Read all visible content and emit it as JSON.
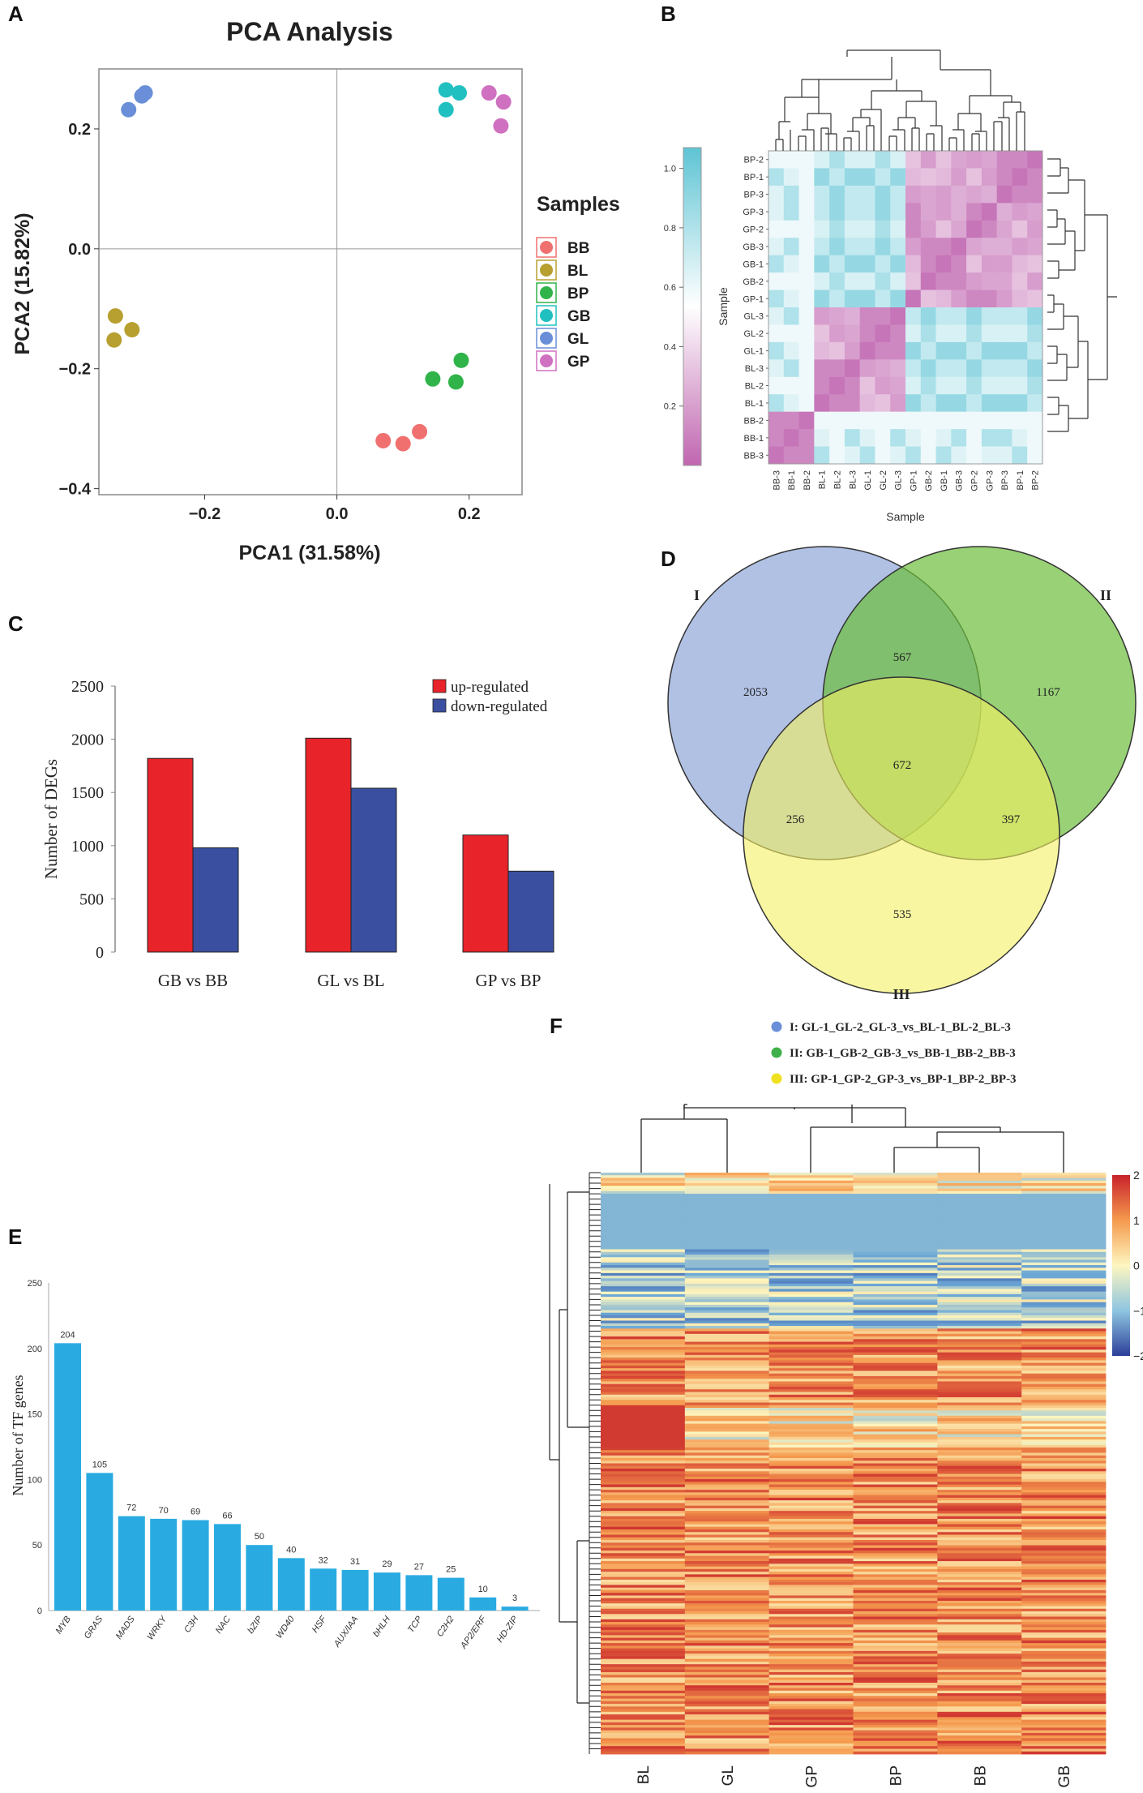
{
  "panels": {
    "a": "A",
    "b": "B",
    "c": "C",
    "d": "D",
    "e": "E",
    "f": "F"
  },
  "chart_data": [
    {
      "id": "pca",
      "type": "scatter",
      "title": "PCA Analysis",
      "xlabel": "PCA1 (31.58%)",
      "ylabel": "PCA2 (15.82%)",
      "xlim": [
        -0.36,
        0.28
      ],
      "ylim": [
        -0.41,
        0.3
      ],
      "xticks": [
        -0.2,
        0.0,
        0.2
      ],
      "xtick_labels": [
        "−0.2",
        "0.0",
        "0.2"
      ],
      "yticks": [
        0.2,
        0.0,
        -0.2,
        -0.4
      ],
      "ytick_labels": [
        "0.2",
        "0.0",
        "−0.2",
        "−0.4"
      ],
      "legend_title": "Samples",
      "legend_position": "right",
      "series": [
        {
          "name": "BB",
          "color": "#f07070",
          "points": [
            [
              0.07,
              -0.32
            ],
            [
              0.1,
              -0.325
            ],
            [
              0.125,
              -0.305
            ]
          ]
        },
        {
          "name": "BL",
          "color": "#b8a030",
          "points": [
            [
              -0.335,
              -0.112
            ],
            [
              -0.31,
              -0.135
            ],
            [
              -0.337,
              -0.152
            ]
          ]
        },
        {
          "name": "BP",
          "color": "#30b44a",
          "points": [
            [
              0.145,
              -0.217
            ],
            [
              0.18,
              -0.222
            ],
            [
              0.188,
              -0.186
            ]
          ]
        },
        {
          "name": "GB",
          "color": "#20c0c0",
          "points": [
            [
              0.165,
              0.265
            ],
            [
              0.185,
              0.26
            ],
            [
              0.165,
              0.232
            ]
          ]
        },
        {
          "name": "GL",
          "color": "#6a8fd8",
          "points": [
            [
              -0.29,
              0.26
            ],
            [
              -0.295,
              0.255
            ],
            [
              -0.315,
              0.232
            ]
          ]
        },
        {
          "name": "GP",
          "color": "#d070c0",
          "points": [
            [
              0.23,
              0.26
            ],
            [
              0.252,
              0.245
            ],
            [
              0.248,
              0.205
            ]
          ]
        }
      ]
    },
    {
      "id": "correlation-heatmap",
      "type": "heatmap",
      "xlabel": "Sample",
      "ylabel": "Sample",
      "row_labels": [
        "BP-2",
        "BP-1",
        "BP-3",
        "GP-3",
        "GP-2",
        "GB-3",
        "GB-1",
        "GB-2",
        "GP-1",
        "GL-3",
        "GL-2",
        "GL-1",
        "BL-3",
        "BL-2",
        "BL-1",
        "BB-2",
        "BB-1",
        "BB-3"
      ],
      "col_labels": [
        "BB-3",
        "BB-1",
        "BB-2",
        "BL-1",
        "BL-2",
        "BL-3",
        "GL-1",
        "GL-2",
        "GL-3",
        "GP-1",
        "GB-2",
        "GB-1",
        "GB-3",
        "GP-2",
        "GP-3",
        "BP-3",
        "BP-1",
        "BP-2"
      ],
      "colorbar_ticks": [
        1.0,
        0.8,
        0.6,
        0.4,
        0.2
      ],
      "colorbar_tick_labels": [
        "1.0",
        "0.8",
        "0.6",
        "0.4",
        "0.2"
      ],
      "color_low": "#c066b0",
      "color_mid": "#ffffff",
      "color_high": "#5ec4d4"
    },
    {
      "id": "degs",
      "type": "bar",
      "ylabel": "Number of DEGs",
      "categories": [
        "GB vs BB",
        "GL vs BL",
        "GP vs BP"
      ],
      "series": [
        {
          "name": "up-regulated",
          "color": "#e8242a",
          "values": [
            1820,
            2010,
            1100
          ]
        },
        {
          "name": "down-regulated",
          "color": "#3a4fa0",
          "values": [
            980,
            1540,
            760
          ]
        }
      ],
      "ylim": [
        0,
        2500
      ],
      "yticks": [
        0,
        500,
        1000,
        1500,
        2000,
        2500
      ],
      "ytick_labels": [
        "0",
        "500",
        "1000",
        "1500",
        "2000",
        "2500"
      ],
      "legend_position": "top-right"
    },
    {
      "id": "venn",
      "type": "venn",
      "sets": [
        {
          "label": "I",
          "color": "#8fa6d8",
          "legend": "I: GL-1_GL-2_GL-3_vs_BL-1_BL-2_BL-3",
          "legend_color": "#6a8fd8"
        },
        {
          "label": "II",
          "color": "#7cc043",
          "legend": "II: GB-1_GB-2_GB-3_vs_BB-1_BB-2_BB-3",
          "legend_color": "#3fb04a"
        },
        {
          "label": "III",
          "color": "#f4f060",
          "legend": "III: GP-1_GP-2_GP-3_vs_BP-1_BP-2_BP-3",
          "legend_color": "#f0e020"
        }
      ],
      "regions": {
        "I_only": "2053",
        "II_only": "1167",
        "III_only": "535",
        "I_II": "567",
        "I_III": "256",
        "II_III": "397",
        "I_II_III": "672"
      }
    },
    {
      "id": "tf-genes",
      "type": "bar",
      "ylabel": "Number of TF genes",
      "categories": [
        "MYB",
        "GRAS",
        "MADS",
        "WRKY",
        "C3H",
        "NAC",
        "bZIP",
        "WD40",
        "HSF",
        "AUX/IAA",
        "bHLH",
        "TCP",
        "C2H2",
        "AP2/ERF",
        "HD-ZIP"
      ],
      "values": [
        204,
        105,
        72,
        70,
        69,
        66,
        50,
        40,
        32,
        31,
        29,
        27,
        25,
        10,
        3
      ],
      "value_labels": [
        "204",
        "105",
        "72",
        "70",
        "69",
        "66",
        "50",
        "40",
        "32",
        "31",
        "29",
        "27",
        "25",
        "10",
        "3"
      ],
      "color": "#29abe2",
      "ylim": [
        0,
        250
      ],
      "yticks": [
        0,
        50,
        100,
        150,
        200,
        250
      ],
      "ytick_labels": [
        "0",
        "50",
        "100",
        "150",
        "200",
        "250"
      ]
    },
    {
      "id": "expression-heatmap",
      "type": "heatmap",
      "columns": [
        "BL",
        "GL",
        "GP",
        "BP",
        "BB",
        "GB"
      ],
      "colorbar_ticks": [
        2,
        1,
        0,
        -1,
        -2
      ],
      "colorbar_tick_labels": [
        "2",
        "1",
        "0",
        "−1",
        "−2"
      ],
      "color_low": "#2c3f9a",
      "color_mid": "#fdf6c0",
      "color_high": "#c8222a"
    }
  ]
}
